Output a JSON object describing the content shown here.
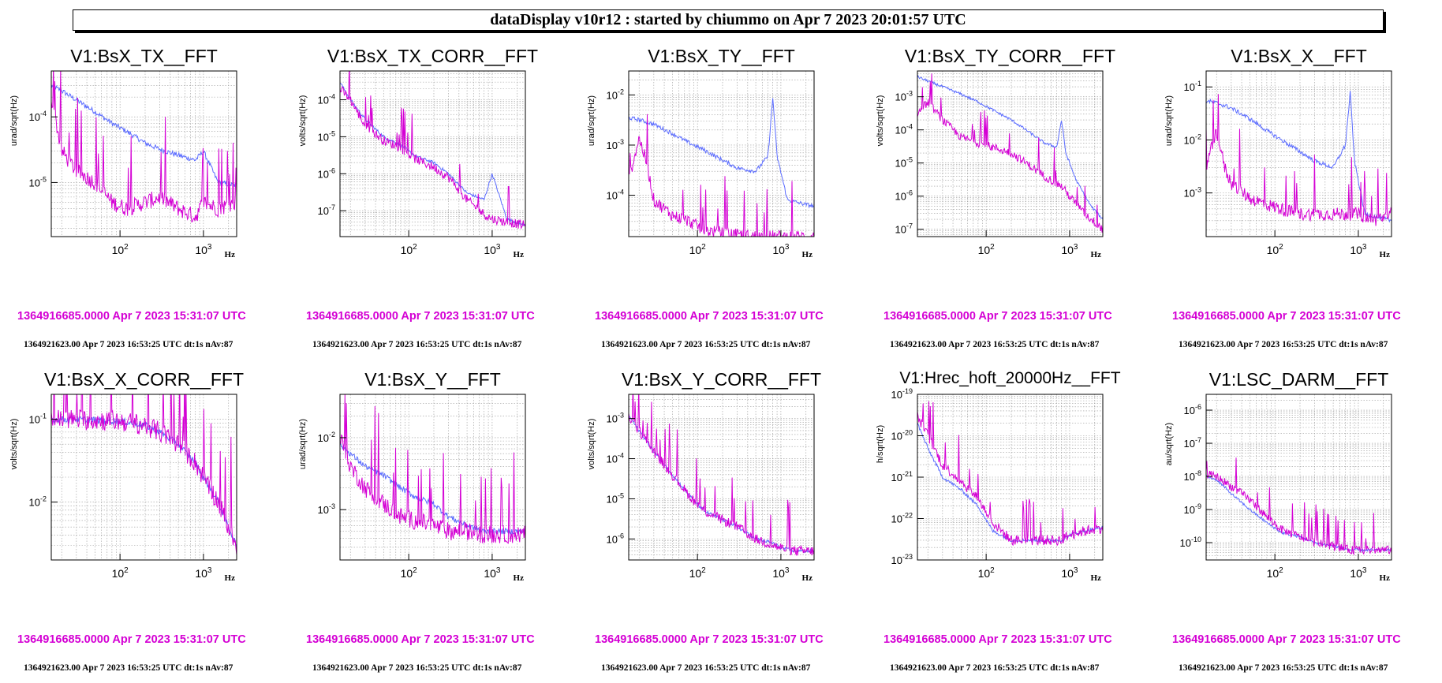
{
  "header": {
    "title": "dataDisplay v10r12 : started by chiummo on Apr  7 2023 20:01:57 UTC"
  },
  "common": {
    "start_time": "1364916685.0000 Apr 7 2023 15:31:07 UTC",
    "meta": "1364921623.00 Apr 7 2023 16:53:25 UTC dt:1s nAv:87",
    "x_unit": "Hz",
    "colors": {
      "reference": "#d400d4",
      "current": "#5b6cff",
      "grid": "#9a9a9a"
    }
  },
  "panels": [
    {
      "title": "V1:BsX_TX__FFT",
      "ylabel": "urad/sqrt(Hz)",
      "chart_data": {
        "type": "line",
        "x_scale": "log",
        "y_scale": "log",
        "xlim": [
          15,
          2500
        ],
        "ylim": [
          1.5e-06,
          0.0005
        ],
        "x_ticks": [
          "10^2",
          "10^3"
        ],
        "y_ticks": [
          "10^-5",
          "10^-4"
        ],
        "grid": true,
        "series": [
          {
            "x": [
              15,
              20,
              30,
              50,
              80,
              120,
              200,
              300,
              500,
              800,
              1000,
              1500,
              2500
            ],
            "y": [
              0.0003,
              0.00025,
              0.00018,
              0.00012,
              8e-05,
              6e-05,
              4e-05,
              3.2e-05,
              2.6e-05,
              2.2e-05,
              3e-05,
              1e-05,
              9e-06
            ]
          },
          {
            "x": [
              15,
              20,
              30,
              50,
              80,
              120,
              200,
              300,
              500,
              800,
              1000,
              1500,
              2500
            ],
            "y": [
              0.0002,
              3e-05,
              1.5e-05,
              1e-05,
              5e-06,
              4e-06,
              5e-06,
              6e-06,
              4e-06,
              3e-06,
              5e-06,
              4e-06,
              5e-06
            ]
          }
        ]
      }
    },
    {
      "title": "V1:BsX_TX_CORR__FFT",
      "ylabel": "volts/sqrt(Hz)",
      "chart_data": {
        "type": "line",
        "x_scale": "log",
        "y_scale": "log",
        "xlim": [
          15,
          2500
        ],
        "ylim": [
          2e-08,
          0.0006
        ],
        "x_ticks": [
          "10^2",
          "10^3"
        ],
        "y_ticks": [
          "10^-7",
          "10^-6",
          "10^-5",
          "10^-4"
        ],
        "grid": true,
        "series": [
          {
            "x": [
              15,
              20,
              30,
              50,
              80,
              120,
              200,
              300,
              500,
              800,
              1000,
              1500,
              2500
            ],
            "y": [
              0.0003,
              0.0001,
              3e-05,
              1e-05,
              6e-06,
              3e-06,
              2e-06,
              1e-06,
              3e-07,
              2e-07,
              1e-06,
              6e-08,
              4e-08
            ]
          },
          {
            "x": [
              15,
              20,
              30,
              50,
              80,
              120,
              200,
              300,
              500,
              800,
              1000,
              1500,
              2500
            ],
            "y": [
              0.0002,
              0.0001,
              2e-05,
              8e-06,
              5e-06,
              2.5e-06,
              1.5e-06,
              8e-07,
              2e-07,
              8e-08,
              6e-08,
              5e-08,
              4e-08
            ]
          }
        ]
      }
    },
    {
      "title": "V1:BsX_TY__FFT",
      "ylabel": "urad/sqrt(Hz)",
      "chart_data": {
        "type": "line",
        "x_scale": "log",
        "y_scale": "log",
        "xlim": [
          15,
          2500
        ],
        "ylim": [
          1.5e-05,
          0.03
        ],
        "x_ticks": [
          "10^2",
          "10^3"
        ],
        "y_ticks": [
          "10^-4",
          "10^-3",
          "10^-2"
        ],
        "grid": true,
        "series": [
          {
            "x": [
              15,
              20,
              30,
              50,
              80,
              120,
              200,
              300,
              500,
              700,
              800,
              900,
              1200,
              2500
            ],
            "y": [
              0.0035,
              0.0032,
              0.0026,
              0.0017,
              0.0011,
              0.0008,
              0.0005,
              0.00035,
              0.0003,
              0.0006,
              0.009,
              0.0006,
              8e-05,
              6e-05
            ]
          },
          {
            "x": [
              15,
              20,
              25,
              30,
              50,
              80,
              120,
              200,
              300,
              500,
              800,
              1000,
              1500,
              2500
            ],
            "y": [
              0.0002,
              0.0014,
              0.0004,
              8e-05,
              4e-05,
              3e-05,
              2e-05,
              1.8e-05,
              1.6e-05,
              1.5e-05,
              1.5e-05,
              1.5e-05,
              1.5e-05,
              1.5e-05
            ]
          }
        ]
      }
    },
    {
      "title": "V1:BsX_TY_CORR__FFT",
      "ylabel": "volts/sqrt(Hz)",
      "chart_data": {
        "type": "line",
        "x_scale": "log",
        "y_scale": "log",
        "xlim": [
          15,
          2500
        ],
        "ylim": [
          6e-08,
          0.006
        ],
        "x_ticks": [
          "10^2",
          "10^3"
        ],
        "y_ticks": [
          "10^-7",
          "10^-6",
          "10^-5",
          "10^-4",
          "10^-3"
        ],
        "grid": true,
        "series": [
          {
            "x": [
              15,
              20,
              30,
              50,
              80,
              120,
              200,
              300,
              500,
              700,
              800,
              900,
              1200,
              1800,
              2500
            ],
            "y": [
              0.004,
              0.003,
              0.002,
              0.0012,
              0.0007,
              0.0004,
              0.0002,
              0.0001,
              4e-05,
              3e-05,
              0.0002,
              2e-05,
              3e-06,
              5e-07,
              2e-07
            ]
          },
          {
            "x": [
              15,
              20,
              30,
              50,
              80,
              120,
              200,
              300,
              500,
              800,
              1000,
              1500,
              2500
            ],
            "y": [
              0.0003,
              0.0007,
              0.0002,
              6e-05,
              4e-05,
              3e-05,
              2e-05,
              1e-05,
              4e-06,
              2e-06,
              1e-06,
              3e-07,
              1e-07
            ]
          }
        ]
      }
    },
    {
      "title": "V1:BsX_X__FFT",
      "ylabel": "urad/sqrt(Hz)",
      "chart_data": {
        "type": "line",
        "x_scale": "log",
        "y_scale": "log",
        "xlim": [
          15,
          2500
        ],
        "ylim": [
          0.00015,
          0.2
        ],
        "x_ticks": [
          "10^2",
          "10^3"
        ],
        "y_ticks": [
          "10^-3",
          "10^-2",
          "10^-1"
        ],
        "grid": true,
        "series": [
          {
            "x": [
              15,
              20,
              30,
              50,
              80,
              120,
              200,
              300,
              500,
              700,
              800,
              900,
              1200,
              2500
            ],
            "y": [
              0.055,
              0.05,
              0.04,
              0.025,
              0.015,
              0.01,
              0.006,
              0.004,
              0.003,
              0.008,
              0.08,
              0.004,
              0.0004,
              0.0003
            ]
          },
          {
            "x": [
              15,
              20,
              25,
              30,
              50,
              80,
              120,
              200,
              300,
              500,
              800,
              1000,
              1500,
              2500
            ],
            "y": [
              0.003,
              0.015,
              0.003,
              0.0015,
              0.0008,
              0.0006,
              0.0005,
              0.0004,
              0.0004,
              0.0004,
              0.0004,
              0.0004,
              0.0003,
              0.0004
            ]
          }
        ]
      }
    },
    {
      "title": "V1:BsX_X_CORR__FFT",
      "ylabel": "volts/sqrt(Hz)",
      "chart_data": {
        "type": "line",
        "x_scale": "log",
        "y_scale": "log",
        "xlim": [
          15,
          2500
        ],
        "ylim": [
          0.002,
          0.2
        ],
        "x_ticks": [
          "10^2",
          "10^3"
        ],
        "y_ticks": [
          "10^-2",
          "10^-1"
        ],
        "grid": true,
        "series": [
          {
            "x": [
              15,
              30,
              50,
              100,
              200,
              300,
              500,
              800,
              1000,
              1500,
              2000,
              2500
            ],
            "y": [
              0.1,
              0.1,
              0.098,
              0.095,
              0.085,
              0.07,
              0.05,
              0.03,
              0.02,
              0.01,
              0.005,
              0.003
            ]
          },
          {
            "x": [
              15,
              30,
              50,
              100,
              200,
              300,
              500,
              800,
              1000,
              1500,
              2000,
              2500
            ],
            "y": [
              0.1,
              0.1,
              0.098,
              0.095,
              0.085,
              0.07,
              0.05,
              0.03,
              0.02,
              0.01,
              0.005,
              0.003
            ]
          }
        ]
      }
    },
    {
      "title": "V1:BsX_Y__FFT",
      "ylabel": "urad/sqrt(Hz)",
      "chart_data": {
        "type": "line",
        "x_scale": "log",
        "y_scale": "log",
        "xlim": [
          15,
          2500
        ],
        "ylim": [
          0.0002,
          0.04
        ],
        "x_ticks": [
          "10^2",
          "10^3"
        ],
        "y_ticks": [
          "10^-3",
          "10^-2"
        ],
        "grid": true,
        "series": [
          {
            "x": [
              15,
              20,
              30,
              50,
              80,
              120,
              200,
              300,
              500,
              800,
              1000,
              1500,
              2500
            ],
            "y": [
              0.008,
              0.006,
              0.004,
              0.003,
              0.002,
              0.0015,
              0.0012,
              0.0008,
              0.0006,
              0.0005,
              0.0005,
              0.0005,
              0.0005
            ]
          },
          {
            "x": [
              15,
              20,
              30,
              50,
              80,
              120,
              200,
              300,
              500,
              800,
              1000,
              1500,
              2500
            ],
            "y": [
              0.01,
              0.004,
              0.002,
              0.0012,
              0.0008,
              0.0007,
              0.0006,
              0.0005,
              0.0005,
              0.00045,
              0.00045,
              0.00045,
              0.00045
            ]
          }
        ]
      }
    },
    {
      "title": "V1:BsX_Y_CORR__FFT",
      "ylabel": "volts/sqrt(Hz)",
      "chart_data": {
        "type": "line",
        "x_scale": "log",
        "y_scale": "log",
        "xlim": [
          15,
          2500
        ],
        "ylim": [
          3e-07,
          0.004
        ],
        "x_ticks": [
          "10^2",
          "10^3"
        ],
        "y_ticks": [
          "10^-6",
          "10^-5",
          "10^-4",
          "10^-3"
        ],
        "grid": true,
        "series": [
          {
            "x": [
              15,
              20,
              30,
              50,
              80,
              120,
              200,
              300,
              500,
              800,
              1000,
              1500,
              2500
            ],
            "y": [
              0.0012,
              0.0005,
              0.00015,
              4e-05,
              1.2e-05,
              5e-06,
              3e-06,
              2e-06,
              1e-06,
              8e-07,
              6e-07,
              5e-07,
              5e-07
            ]
          },
          {
            "x": [
              15,
              20,
              30,
              50,
              80,
              120,
              200,
              300,
              500,
              800,
              1000,
              1500,
              2500
            ],
            "y": [
              0.0012,
              0.0005,
              0.00015,
              4e-05,
              1.2e-05,
              5e-06,
              3e-06,
              2e-06,
              1e-06,
              7e-07,
              6e-07,
              5e-07,
              5e-07
            ]
          }
        ]
      }
    },
    {
      "title": "V1:Hrec_hoft_20000Hz__FFT",
      "ylabel": "h/sqrt(Hz)",
      "chart_data": {
        "type": "line",
        "x_scale": "log",
        "y_scale": "log",
        "xlim": [
          15,
          2500
        ],
        "ylim": [
          1e-23,
          1e-19
        ],
        "x_ticks": [
          "10^2",
          "10^3"
        ],
        "y_ticks": [
          "10^-23",
          "10^-22",
          "10^-21",
          "10^-20",
          "10^-19"
        ],
        "grid": true,
        "series": [
          {
            "x": [
              15,
              20,
              30,
              50,
              80,
              120,
              200,
              300,
              500,
              800,
              1000,
              1500,
              2500
            ],
            "y": [
              2e-20,
              5e-21,
              1e-21,
              5e-22,
              2e-22,
              5e-23,
              3e-23,
              3e-23,
              3e-23,
              3e-23,
              4e-23,
              5e-23,
              6e-23
            ]
          },
          {
            "x": [
              15,
              20,
              30,
              50,
              80,
              120,
              200,
              300,
              500,
              800,
              1000,
              1500,
              2500
            ],
            "y": [
              3e-20,
              1e-20,
              2e-21,
              8e-22,
              3e-22,
              8e-23,
              3e-23,
              3e-23,
              3e-23,
              3e-23,
              4e-23,
              5e-23,
              6e-23
            ]
          }
        ]
      }
    },
    {
      "title": "V1:LSC_DARM__FFT",
      "ylabel": "au/sqrt(Hz)",
      "chart_data": {
        "type": "line",
        "x_scale": "log",
        "y_scale": "log",
        "xlim": [
          15,
          2500
        ],
        "ylim": [
          3e-11,
          3e-06
        ],
        "x_ticks": [
          "10^2",
          "10^3"
        ],
        "y_ticks": [
          "10^-10",
          "10^-9",
          "10^-8",
          "10^-7",
          "10^-6"
        ],
        "grid": true,
        "series": [
          {
            "x": [
              15,
              20,
              30,
              50,
              80,
              120,
              200,
              300,
              500,
              800,
              1000,
              1500,
              2500
            ],
            "y": [
              1e-08,
              8e-09,
              3e-09,
              1e-09,
              4e-10,
              2e-10,
              1.5e-10,
              1e-10,
              8e-11,
              6e-11,
              6e-11,
              6e-11,
              6e-11
            ]
          },
          {
            "x": [
              15,
              20,
              30,
              50,
              80,
              120,
              200,
              300,
              500,
              800,
              1000,
              1500,
              2500
            ],
            "y": [
              1.2e-08,
              1e-08,
              5e-09,
              2e-09,
              6e-10,
              2.5e-10,
              1.5e-10,
              1e-10,
              8e-11,
              6e-11,
              6e-11,
              6e-11,
              6e-11
            ]
          }
        ]
      }
    }
  ]
}
